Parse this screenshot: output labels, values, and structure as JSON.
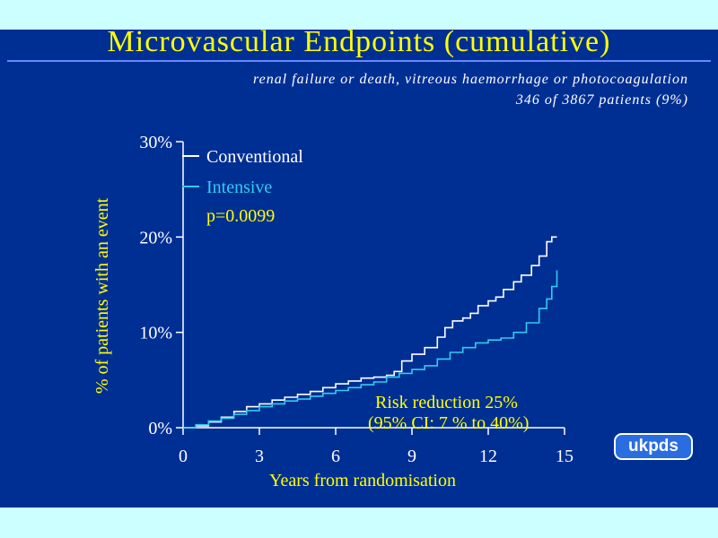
{
  "slide": {
    "title": "Microvascular Endpoints (cumulative)",
    "subtitle_line1": "renal failure or death, vitreous haemorrhage or photocoagulation",
    "subtitle_line2": "346 of 3867 patients (9%)",
    "logo_text": "ukpds",
    "background_color": "#002f94",
    "page_color": "#ccffff"
  },
  "chart_data": {
    "type": "line",
    "title": "Microvascular Endpoints (cumulative)",
    "xlabel": "Years from randomisation",
    "ylabel": "% of patients with an event",
    "xlim": [
      0,
      15
    ],
    "ylim": [
      0,
      30
    ],
    "x_ticks": [
      "0",
      "3",
      "6",
      "9",
      "12",
      "15"
    ],
    "y_ticks": [
      "0%",
      "10%",
      "20%",
      "30%"
    ],
    "grid": false,
    "legend_position": "top-left",
    "annotations": {
      "p_value": "p=0.0099",
      "risk_line1": "Risk reduction 25%",
      "risk_line2": "(95% CI: 7 % to 40%)"
    },
    "series": [
      {
        "name": "Conventional",
        "color": "#ffffff",
        "points": [
          [
            0,
            0
          ],
          [
            0.5,
            0.2
          ],
          [
            1,
            0.6
          ],
          [
            1.5,
            1.1
          ],
          [
            2,
            1.7
          ],
          [
            2.5,
            2.2
          ],
          [
            3,
            2.5
          ],
          [
            3.5,
            2.9
          ],
          [
            4,
            3.2
          ],
          [
            4.5,
            3.5
          ],
          [
            5,
            3.8
          ],
          [
            5.5,
            4.2
          ],
          [
            6,
            4.6
          ],
          [
            6.5,
            4.9
          ],
          [
            7,
            5.2
          ],
          [
            7.5,
            5.3
          ],
          [
            8,
            5.5
          ],
          [
            8.3,
            5.9
          ],
          [
            8.6,
            7.0
          ],
          [
            9,
            7.7
          ],
          [
            9.5,
            8.4
          ],
          [
            10,
            9.5
          ],
          [
            10.3,
            10.5
          ],
          [
            10.6,
            11.2
          ],
          [
            11,
            11.5
          ],
          [
            11.3,
            12.0
          ],
          [
            11.6,
            12.8
          ],
          [
            12,
            13.3
          ],
          [
            12.3,
            13.7
          ],
          [
            12.6,
            14.5
          ],
          [
            13,
            15.3
          ],
          [
            13.3,
            16.0
          ],
          [
            13.7,
            17.0
          ],
          [
            14,
            18.0
          ],
          [
            14.3,
            19.5
          ],
          [
            14.5,
            20.0
          ],
          [
            14.7,
            20.0
          ]
        ]
      },
      {
        "name": "Intensive",
        "color": "#33ccee",
        "points": [
          [
            0,
            0
          ],
          [
            0.5,
            0.3
          ],
          [
            1,
            0.7
          ],
          [
            1.5,
            1.0
          ],
          [
            2,
            1.4
          ],
          [
            2.5,
            1.8
          ],
          [
            3,
            2.2
          ],
          [
            3.5,
            2.5
          ],
          [
            4,
            2.8
          ],
          [
            4.5,
            3.0
          ],
          [
            5,
            3.3
          ],
          [
            5.5,
            3.6
          ],
          [
            6,
            3.9
          ],
          [
            6.5,
            4.2
          ],
          [
            7,
            4.5
          ],
          [
            7.5,
            4.8
          ],
          [
            8,
            5.3
          ],
          [
            8.5,
            5.7
          ],
          [
            9,
            6.1
          ],
          [
            9.5,
            6.5
          ],
          [
            10,
            7.2
          ],
          [
            10.5,
            7.9
          ],
          [
            11,
            8.4
          ],
          [
            11.5,
            8.9
          ],
          [
            12,
            9.2
          ],
          [
            12.5,
            9.4
          ],
          [
            13,
            10.0
          ],
          [
            13.5,
            11.0
          ],
          [
            14,
            12.5
          ],
          [
            14.3,
            13.5
          ],
          [
            14.5,
            14.8
          ],
          [
            14.7,
            16.5
          ]
        ]
      }
    ]
  }
}
